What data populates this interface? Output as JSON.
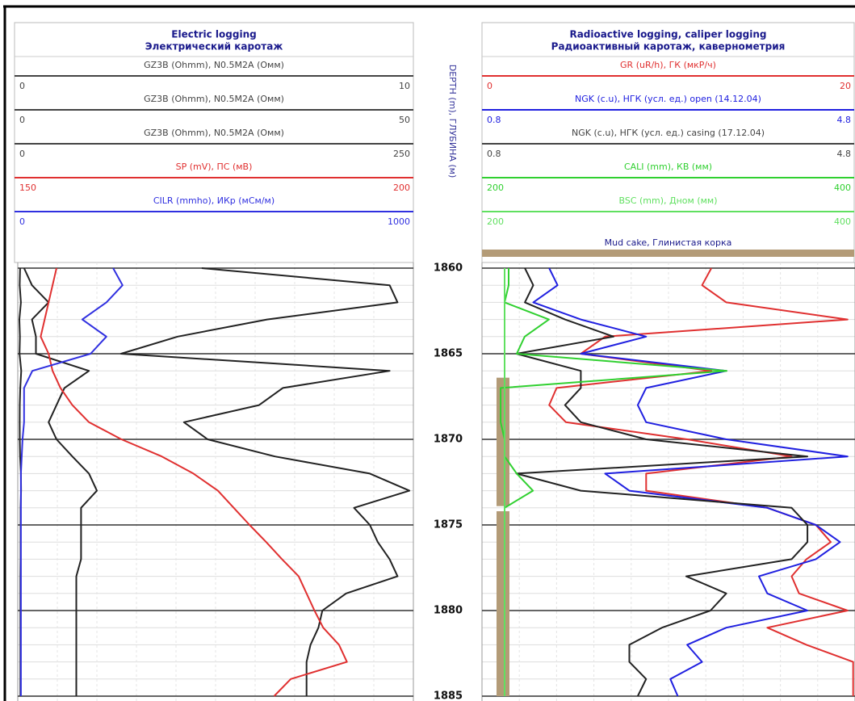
{
  "depth_axis": {
    "label": "DEPTH (m), ГЛУБИНА (м)",
    "ylim": [
      1860,
      1885
    ],
    "yticks": [
      1860,
      1865,
      1870,
      1875,
      1880,
      1885
    ],
    "depth": [
      1860,
      1861,
      1862,
      1863,
      1864,
      1865,
      1866,
      1867,
      1868,
      1869,
      1870,
      1871,
      1872,
      1873,
      1874,
      1875,
      1876,
      1877,
      1878,
      1879,
      1880,
      1881,
      1882,
      1883,
      1884,
      1885
    ]
  },
  "chart_data": [
    {
      "type": "log-track",
      "title": "Electric logging",
      "subtitle": "Электрический каротаж",
      "series": [
        {
          "name": "GZ3B (Ohmm), N0.5M2A (Омм)",
          "color": "#222222",
          "xlim": [
            0,
            10
          ],
          "values": [
            4.65,
            9.4,
            9.6,
            6.3,
            4.04,
            2.61,
            9.4,
            6.7,
            6.1,
            4.2,
            4.8,
            6.5,
            8.9,
            9.9,
            8.5,
            8.9,
            9.1,
            9.4,
            9.6,
            8.3,
            7.7,
            7.6,
            7.4,
            7.3,
            7.3,
            7.3
          ]
        },
        {
          "name": "GZ3B (Ohmm), N0.5M2A (Омм)",
          "color": "#222222",
          "xlim": [
            0,
            50
          ],
          "values": [
            0.8,
            1.8,
            3.9,
            1.8,
            2.3,
            2.3,
            9.0,
            5.9,
            4.9,
            3.9,
            4.9,
            6.9,
            9.0,
            10.0,
            8.0,
            8.0,
            8.0,
            8.0,
            7.4,
            7.4,
            7.4,
            7.4,
            7.4,
            7.4,
            7.4,
            7.4
          ]
        },
        {
          "name": "GZ3B (Ohmm), N0.5M2A (Омм)",
          "color": "#222222",
          "xlim": [
            0,
            250
          ],
          "values": [
            1.5,
            1.2,
            2.0,
            1.0,
            1.4,
            1.1,
            2.2,
            1.6,
            1.3,
            1.2,
            1.3,
            1.5,
            2.0,
            2.1,
            1.8,
            1.8,
            1.8,
            1.8,
            1.7,
            1.7,
            1.7,
            1.7,
            1.7,
            1.7,
            1.7,
            1.7
          ]
        },
        {
          "name": "SP (mV), ПС (мВ)",
          "color": "#e03030",
          "xlim": [
            150,
            200
          ],
          "values": [
            154.9,
            154.4,
            153.9,
            153.4,
            152.9,
            153.9,
            154.4,
            155.4,
            156.9,
            159.0,
            163.1,
            168.2,
            172.2,
            175.3,
            177.3,
            179.3,
            181.4,
            183.4,
            185.5,
            186.5,
            187.5,
            188.6,
            190.6,
            191.6,
            184.5,
            182.4
          ]
        },
        {
          "name": "CILR (mmho), ИКр (мСм/м)",
          "color": "#3030e0",
          "xlim": [
            0,
            1000
          ],
          "values": [
            241,
            265,
            224,
            163,
            224,
            184,
            37,
            16,
            16,
            16,
            12,
            10,
            8,
            8,
            8,
            8,
            8,
            8,
            8,
            8,
            8,
            8,
            8,
            8,
            8,
            8
          ]
        }
      ]
    },
    {
      "type": "log-track",
      "title": "Radioactive logging, caliper logging",
      "subtitle": "Радиоактивный каротаж, кавернометрия",
      "series": [
        {
          "name": "GR (uR/h), ГК (мкР/ч)",
          "color": "#e03030",
          "xlim": [
            0,
            20
          ],
          "values": [
            12.3,
            11.8,
            13.1,
            19.6,
            6.6,
            5.3,
            12.3,
            4.0,
            3.6,
            4.5,
            11.0,
            16.6,
            8.8,
            8.8,
            15.3,
            17.9,
            18.7,
            17.4,
            16.6,
            17.0,
            19.6,
            15.3,
            17.4,
            19.9,
            19.9,
            19.9
          ]
        },
        {
          "name": "NGK (c.u), НГК (усл. ед.) open (14.12.04)",
          "color": "#2020e0",
          "xlim": [
            0.8,
            4.8
          ],
          "values": [
            1.52,
            1.61,
            1.35,
            1.86,
            2.56,
            1.86,
            3.42,
            2.56,
            2.47,
            2.56,
            3.42,
            4.72,
            2.12,
            2.38,
            3.86,
            4.38,
            4.64,
            4.38,
            3.77,
            3.86,
            4.29,
            3.42,
            3.0,
            3.16,
            2.82,
            2.9
          ]
        },
        {
          "name": "NGK (c.u), НГК (усл. ед.) casing (17.12.04)",
          "color": "#222222",
          "xlim": [
            0.8,
            4.8
          ],
          "values": [
            1.26,
            1.35,
            1.26,
            1.69,
            2.21,
            1.17,
            1.86,
            1.86,
            1.69,
            1.86,
            2.56,
            4.29,
            1.17,
            1.86,
            4.12,
            4.29,
            4.29,
            4.12,
            2.99,
            3.42,
            3.25,
            2.73,
            2.38,
            2.38,
            2.56,
            2.47
          ]
        },
        {
          "name": "CALI (mm), КВ (мм)",
          "color": "#30d030",
          "xlim": [
            200,
            400
          ],
          "values": [
            214.3,
            214.3,
            212.1,
            235.9,
            222.9,
            218.6,
            331.2,
            210.0,
            210.0,
            210.0,
            212.1,
            212.1,
            218.6,
            227.3,
            212.1,
            212.1,
            212.1,
            212.1,
            212.1,
            212.1,
            212.1,
            212.1,
            212.1,
            212.1,
            212.1,
            212.1
          ]
        },
        {
          "name": "BSC (mm), Дном (мм)",
          "color": "#60e060",
          "xlim": [
            200,
            400
          ],
          "values": [
            212.1,
            212.1,
            212.1,
            212.1,
            212.1,
            212.1,
            212.1,
            212.1,
            212.1,
            212.1,
            212.1,
            212.1,
            212.1,
            212.1,
            212.1,
            212.1,
            212.1,
            212.1,
            212.1,
            212.1,
            212.1,
            212.1,
            212.1,
            212.1,
            212.1,
            212.1
          ]
        }
      ],
      "fill": {
        "name": "Mud cake, Глинистая корка",
        "color": "#b39b77",
        "intervals": [
          [
            1866.4,
            1873.9
          ],
          [
            1874.2,
            1885
          ]
        ]
      }
    }
  ]
}
